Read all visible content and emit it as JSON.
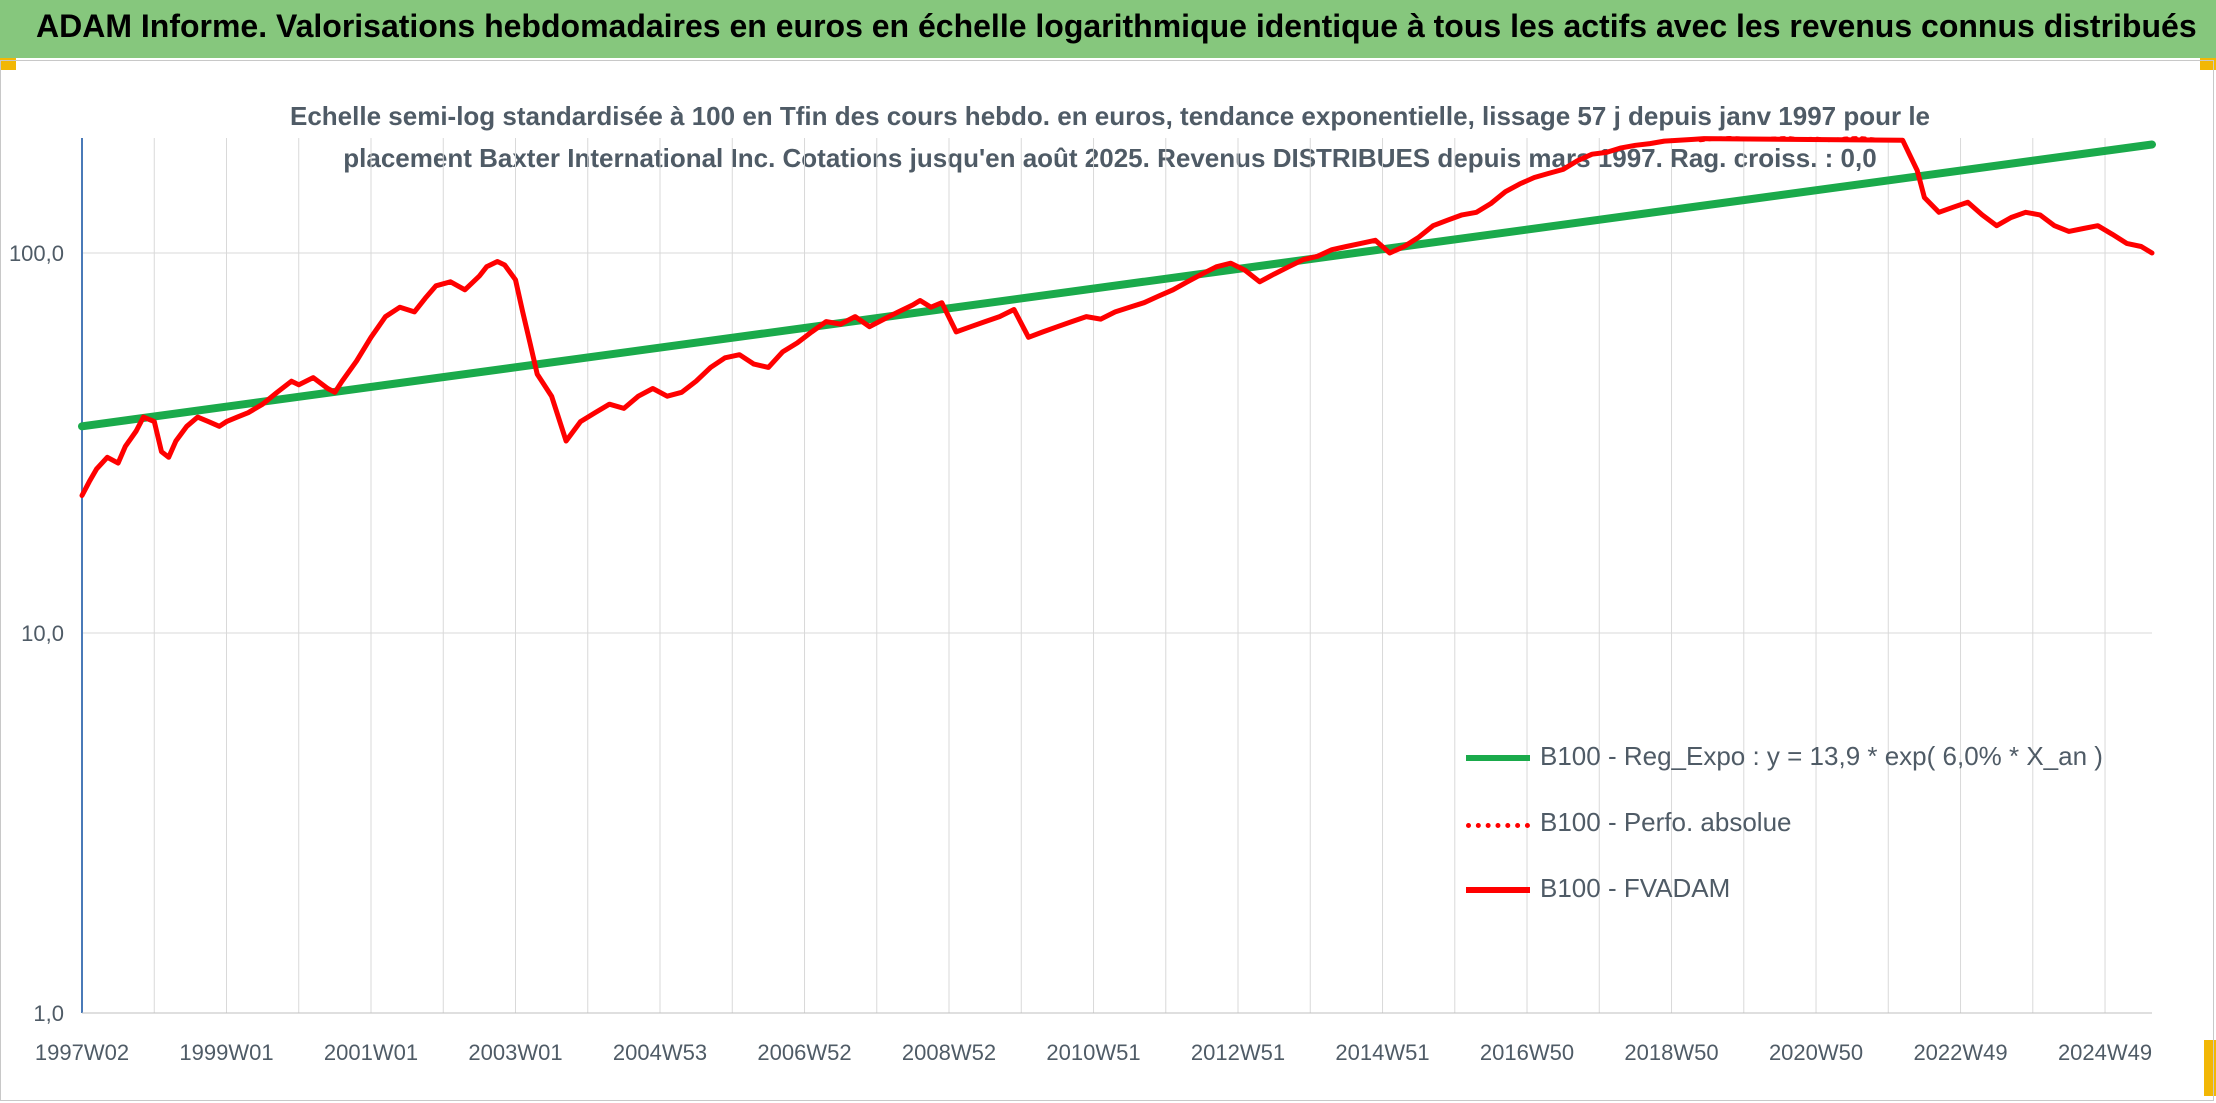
{
  "header": {
    "title": "ADAM Informe. Valorisations hebdomadaires en euros en échelle logarithmique identique à tous les actifs avec les revenus connus distribués"
  },
  "colors": {
    "header_bg": "#86c77d",
    "accent_corner": "#f2b705",
    "regression": "#1aaa4b",
    "fvadam": "#ff0000",
    "perfo": "#ff0000",
    "grid": "#d9d9d9",
    "axis_text": "#4f5b66"
  },
  "chart_data": {
    "type": "line",
    "title_lines": [
      "Echelle semi-log standardisée à 100 en Tfin des cours hebdo. en euros, tendance exponentielle, lissage 57 j depuis janv 1997 pour le",
      "placement Baxter International Inc. Cotations jusqu'en août 2025. Revenus DISTRIBUES depuis mars 1997. Rag. croiss. : 0,0"
    ],
    "y_scale": "log",
    "ylim": [
      1,
      200
    ],
    "xlim": [
      1997.0,
      2025.65
    ],
    "grid": true,
    "legend_position": "bottom-right",
    "y_ticks": [
      {
        "value": 1,
        "label": "1,0"
      },
      {
        "value": 10,
        "label": "10,0"
      },
      {
        "value": 100,
        "label": "100,0"
      }
    ],
    "x_ticks": [
      {
        "x": 1997.0,
        "label": "1997W02"
      },
      {
        "x": 1999.0,
        "label": "1999W01"
      },
      {
        "x": 2001.0,
        "label": "2001W01"
      },
      {
        "x": 2003.0,
        "label": "2003W01"
      },
      {
        "x": 2005.0,
        "label": "2004W53"
      },
      {
        "x": 2007.0,
        "label": "2006W52"
      },
      {
        "x": 2009.0,
        "label": "2008W52"
      },
      {
        "x": 2011.0,
        "label": "2010W51"
      },
      {
        "x": 2013.0,
        "label": "2012W51"
      },
      {
        "x": 2015.0,
        "label": "2014W51"
      },
      {
        "x": 2017.0,
        "label": "2016W50"
      },
      {
        "x": 2019.0,
        "label": "2018W50"
      },
      {
        "x": 2021.0,
        "label": "2020W50"
      },
      {
        "x": 2023.0,
        "label": "2022W49"
      },
      {
        "x": 2025.0,
        "label": "2024W49"
      }
    ],
    "series": [
      {
        "name": "B100 - Reg_Expo : y = 13,9 * exp( 6,0% *  X_an )",
        "style": "solid-thick",
        "color": "#1aaa4b",
        "x": [
          1997.0,
          2025.65
        ],
        "y": [
          35,
          193
        ]
      },
      {
        "name": "B100 - Perfo. absolue",
        "style": "dotted",
        "color": "#ff0000",
        "x": [
          2019.4,
          2019.6,
          2019.8,
          2020.0,
          2020.2,
          2020.4,
          2020.6,
          2020.8,
          2021.0,
          2021.2,
          2021.4,
          2021.6,
          2021.8
        ],
        "y": [
          198,
          200,
          201,
          200,
          199,
          200,
          201,
          199,
          200,
          198,
          200,
          201,
          199
        ]
      },
      {
        "name": "B100 - FVADAM",
        "style": "solid",
        "color": "#ff0000",
        "x": [
          1997.0,
          1997.1,
          1997.2,
          1997.35,
          1997.5,
          1997.6,
          1997.75,
          1997.85,
          1998.0,
          1998.1,
          1998.2,
          1998.3,
          1998.45,
          1998.6,
          1998.75,
          1998.9,
          1999.0,
          1999.15,
          1999.3,
          1999.5,
          1999.7,
          1999.9,
          2000.0,
          2000.2,
          2000.4,
          2000.5,
          2000.6,
          2000.8,
          2001.0,
          2001.2,
          2001.4,
          2001.6,
          2001.75,
          2001.9,
          2002.1,
          2002.3,
          2002.5,
          2002.6,
          2002.75,
          2002.85,
          2003.0,
          2003.1,
          2003.2,
          2003.3,
          2003.5,
          2003.7,
          2003.9,
          2004.1,
          2004.3,
          2004.5,
          2004.7,
          2004.9,
          2005.1,
          2005.3,
          2005.5,
          2005.7,
          2005.9,
          2006.1,
          2006.3,
          2006.5,
          2006.7,
          2006.9,
          2007.1,
          2007.3,
          2007.5,
          2007.7,
          2007.9,
          2008.1,
          2008.3,
          2008.5,
          2008.6,
          2008.75,
          2008.9,
          2009.1,
          2009.3,
          2009.5,
          2009.7,
          2009.9,
          2010.1,
          2010.3,
          2010.5,
          2010.7,
          2010.9,
          2011.1,
          2011.3,
          2011.5,
          2011.7,
          2011.9,
          2012.1,
          2012.3,
          2012.5,
          2012.7,
          2012.9,
          2013.1,
          2013.3,
          2013.5,
          2013.7,
          2013.9,
          2014.1,
          2014.3,
          2014.5,
          2014.7,
          2014.9,
          2015.1,
          2015.3,
          2015.5,
          2015.7,
          2015.9,
          2016.1,
          2016.3,
          2016.5,
          2016.7,
          2016.9,
          2017.1,
          2017.3,
          2017.5,
          2017.7,
          2017.9,
          2018.1,
          2018.3,
          2018.5,
          2018.7,
          2018.9,
          2019.1,
          2019.3,
          2019.45,
          2022.2,
          2022.4,
          2022.5,
          2022.7,
          2022.9,
          2023.1,
          2023.3,
          2023.5,
          2023.7,
          2023.9,
          2024.1,
          2024.3,
          2024.5,
          2024.7,
          2024.9,
          2025.1,
          2025.3,
          2025.5,
          2025.65
        ],
        "y": [
          23,
          25,
          27,
          29,
          28,
          31,
          34,
          37,
          36,
          30,
          29,
          32,
          35,
          37,
          36,
          35,
          36,
          37,
          38,
          40,
          43,
          46,
          45,
          47,
          44,
          43,
          46,
          52,
          60,
          68,
          72,
          70,
          76,
          82,
          84,
          80,
          87,
          92,
          95,
          93,
          85,
          70,
          58,
          48,
          42,
          32,
          36,
          38,
          40,
          39,
          42,
          44,
          42,
          43,
          46,
          50,
          53,
          54,
          51,
          50,
          55,
          58,
          62,
          66,
          65,
          68,
          64,
          67,
          70,
          73,
          75,
          72,
          74,
          62,
          64,
          66,
          68,
          71,
          60,
          62,
          64,
          66,
          68,
          67,
          70,
          72,
          74,
          77,
          80,
          84,
          88,
          92,
          94,
          90,
          84,
          88,
          92,
          96,
          98,
          102,
          104,
          106,
          108,
          100,
          104,
          110,
          118,
          122,
          126,
          128,
          135,
          145,
          152,
          158,
          162,
          166,
          175,
          182,
          184,
          189,
          192,
          194,
          197,
          198,
          199,
          200,
          198,
          165,
          140,
          128,
          132,
          136,
          126,
          118,
          124,
          128,
          126,
          118,
          114,
          116,
          118,
          112,
          106,
          104,
          100
        ]
      }
    ]
  }
}
